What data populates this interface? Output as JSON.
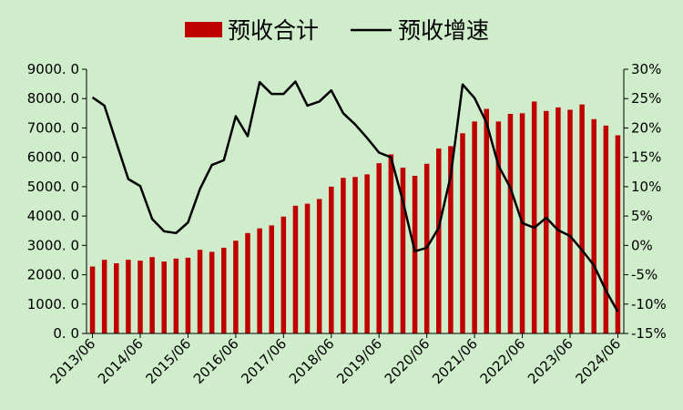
{
  "chart_data": {
    "type": "bar+line",
    "legend": {
      "placement": "top-center",
      "bar_label": "预收合计",
      "line_label": "预收增速"
    },
    "colors": {
      "bar": "#c00000",
      "line": "#000000",
      "background": "#cfeccb"
    },
    "x_tick_labels": [
      "2013/06",
      "2014/06",
      "2015/06",
      "2016/06",
      "2017/06",
      "2018/06",
      "2019/06",
      "2020/06",
      "2021/06",
      "2022/06",
      "2023/06",
      "2024/06"
    ],
    "y_left": {
      "range": [
        0,
        9000
      ],
      "ticks": [
        "0. 0",
        "1000. 0",
        "2000. 0",
        "3000. 0",
        "4000. 0",
        "5000. 0",
        "6000. 0",
        "7000. 0",
        "8000. 0",
        "9000. 0"
      ]
    },
    "y_right": {
      "range": [
        -15,
        30
      ],
      "ticks": [
        "-15%",
        "-10%",
        "-5%",
        "0%",
        "5%",
        "10%",
        "15%",
        "20%",
        "25%",
        "30%"
      ]
    },
    "grid": false,
    "series": [
      {
        "name": "预收合计",
        "type": "bar",
        "axis": "left",
        "values": [
          2280,
          2510,
          2390,
          2510,
          2480,
          2600,
          2450,
          2550,
          2580,
          2850,
          2780,
          2920,
          3160,
          3420,
          3580,
          3680,
          3980,
          4350,
          4420,
          4580,
          5000,
          5300,
          5330,
          5420,
          5800,
          6100,
          5650,
          5370,
          5780,
          6300,
          6380,
          6820,
          7220,
          7650,
          7220,
          7480,
          7500,
          7900,
          7580,
          7700,
          7620,
          7800,
          7300,
          7080,
          6750
        ]
      },
      {
        "name": "预收增速",
        "type": "line",
        "axis": "right",
        "values": [
          25.2,
          23.8,
          17.5,
          11.3,
          10.1,
          4.5,
          2.4,
          2.1,
          3.9,
          9.6,
          13.7,
          14.5,
          22.0,
          18.6,
          27.8,
          25.8,
          25.8,
          27.9,
          23.8,
          24.5,
          26.4,
          22.5,
          20.6,
          18.3,
          15.8,
          15.0,
          7.5,
          -1.0,
          -0.4,
          3.0,
          11.8,
          27.4,
          25.1,
          20.9,
          13.6,
          9.8,
          3.8,
          3.0,
          4.7,
          2.6,
          1.6,
          -0.8,
          -3.4,
          -7.7,
          -11.3
        ]
      }
    ]
  }
}
